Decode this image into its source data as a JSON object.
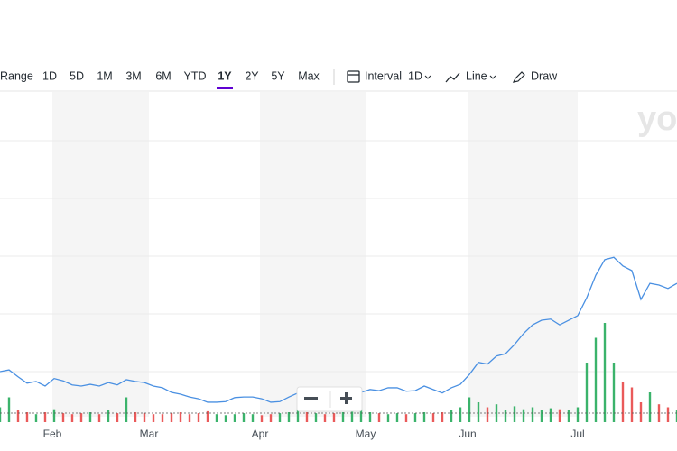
{
  "toolbar": {
    "ranges": [
      "Range",
      "1D",
      "5D",
      "1M",
      "3M",
      "6M",
      "YTD",
      "1Y",
      "2Y",
      "5Y",
      "Max"
    ],
    "interval_label": "Interval",
    "interval_value": "1D",
    "chart_style": "Line",
    "draw": "Draw"
  },
  "watermark": "yo",
  "chart_data": {
    "type": "line",
    "xlim": [
      0,
      75
    ],
    "xticks": [
      {
        "value": 5.8,
        "label": "Feb"
      },
      {
        "value": 16.5,
        "label": "Mar"
      },
      {
        "value": 28.8,
        "label": "Apr"
      },
      {
        "value": 40.5,
        "label": "May"
      },
      {
        "value": 51.8,
        "label": "Jun"
      },
      {
        "value": 64,
        "label": "Jul"
      }
    ],
    "ylim": [
      0,
      6
    ],
    "yticks": [
      1,
      2,
      3,
      4,
      5
    ],
    "y2lim": [
      0,
      10
    ],
    "grid": true,
    "series": [
      {
        "color": "#4a90e2",
        "values": [
          1.0,
          1.03,
          0.91,
          0.8,
          0.83,
          0.75,
          0.88,
          0.84,
          0.77,
          0.75,
          0.78,
          0.75,
          0.81,
          0.77,
          0.86,
          0.83,
          0.81,
          0.75,
          0.72,
          0.64,
          0.61,
          0.56,
          0.53,
          0.47,
          0.47,
          0.48,
          0.55,
          0.56,
          0.56,
          0.53,
          0.47,
          0.48,
          0.56,
          0.63,
          0.59,
          0.64,
          0.61,
          0.56,
          0.59,
          0.63,
          0.64,
          0.69,
          0.67,
          0.72,
          0.72,
          0.66,
          0.67,
          0.75,
          0.69,
          0.63,
          0.72,
          0.78,
          0.95,
          1.16,
          1.13,
          1.27,
          1.31,
          1.47,
          1.66,
          1.81,
          1.89,
          1.91,
          1.81,
          1.89,
          1.97,
          2.28,
          2.67,
          2.94,
          2.98,
          2.83,
          2.75,
          2.25,
          2.53,
          2.5,
          2.44,
          2.53
        ]
      },
      {
        "axis": "y2",
        "up_color": "#3bb36b",
        "down_color": "#ea5a5a",
        "values": [
          1.5,
          2.5,
          1.2,
          1.0,
          0.8,
          1.0,
          1.3,
          0.9,
          0.8,
          0.9,
          1.0,
          0.8,
          1.2,
          0.9,
          2.5,
          1.0,
          0.9,
          0.8,
          0.8,
          0.9,
          1.0,
          0.8,
          0.9,
          1.1,
          0.8,
          0.7,
          0.8,
          0.9,
          0.8,
          0.7,
          0.8,
          0.9,
          1.0,
          1.5,
          1.0,
          0.9,
          0.8,
          0.9,
          1.0,
          1.2,
          3.0,
          1.0,
          0.9,
          0.8,
          0.9,
          0.8,
          0.9,
          1.0,
          0.9,
          1.0,
          1.2,
          1.5,
          2.5,
          2.0,
          1.5,
          1.8,
          1.2,
          1.6,
          1.3,
          1.5,
          1.2,
          1.4,
          1.3,
          1.2,
          1.5,
          6.0,
          8.5,
          10.0,
          6.0,
          4.0,
          3.5,
          2.0,
          3.0,
          1.8,
          1.5,
          1.2
        ]
      }
    ]
  }
}
